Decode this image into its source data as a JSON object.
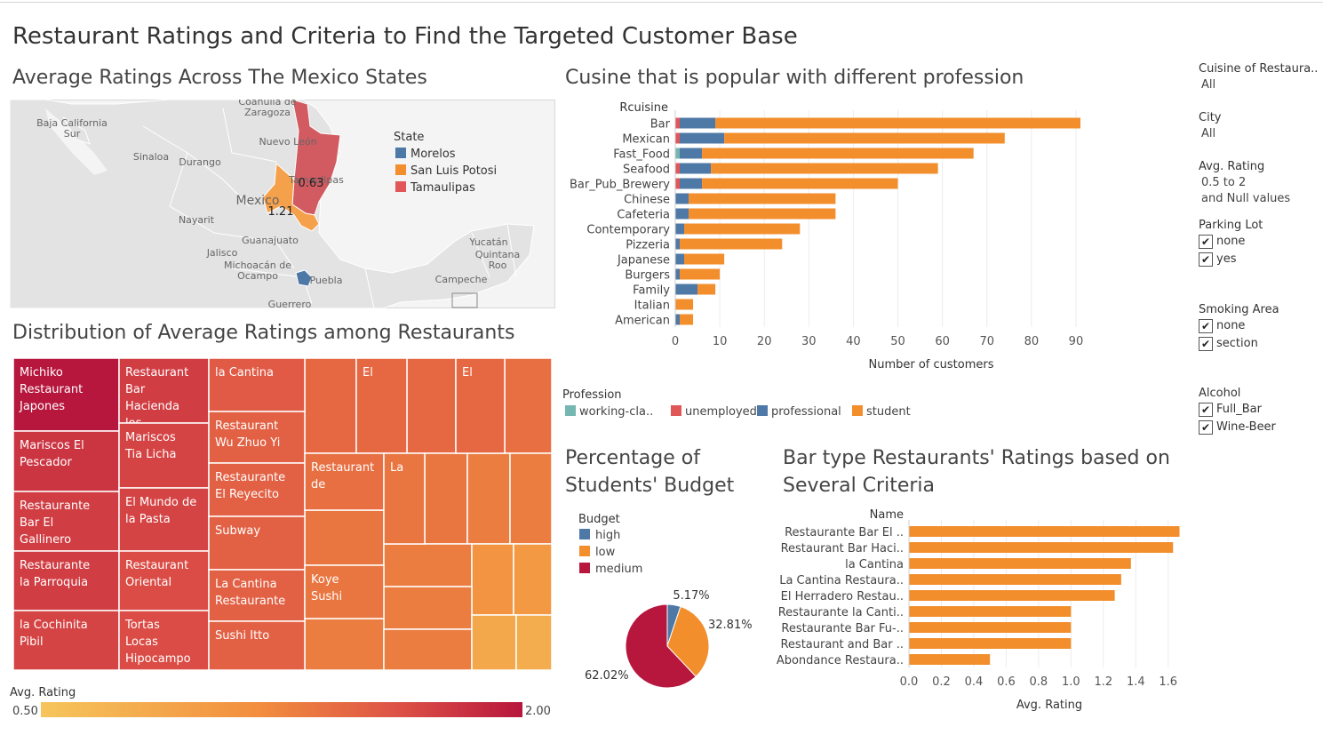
{
  "dashboard_title": "Restaurant Ratings and Criteria to Find the Targeted Customer Base",
  "colors": {
    "student": "#f28e2b",
    "professional": "#4e79a7",
    "unemployed": "#e15759",
    "working_class": "#76b7b2",
    "budget_high": "#4e79a7",
    "budget_low": "#f28e2b",
    "budget_medium": "#b7163d",
    "rating_low": "#f6c55b",
    "rating_high": "#b7163d",
    "map_land": "#e3e3e3",
    "map_water": "#f4f4f4"
  },
  "map": {
    "title": "Average Ratings Across The Mexico States",
    "legend_title": "State",
    "legend": [
      {
        "name": "Morelos",
        "color": "#4e79a7"
      },
      {
        "name": "San Luis Potosi",
        "color": "#f28e2b"
      },
      {
        "name": "Tamaulipas",
        "color": "#e15759"
      }
    ],
    "state_labels": [
      {
        "state": "Tamaulipas",
        "value": "0.63"
      },
      {
        "state": "San Luis Potosi",
        "value": "1.21"
      }
    ],
    "place_labels": [
      "Coahuila de Zaragoza",
      "Baja California Sur",
      "Nuevo León",
      "Sinaloa",
      "Durango",
      "Tamaulipas",
      "Mexico",
      "Nayarit",
      "Guanajuato",
      "Jalisco",
      "Michoacán de Ocampo",
      "Puebla",
      "Guerrero",
      "Yucatán",
      "Quintana Roo",
      "Campeche"
    ]
  },
  "chart_data": [
    {
      "type": "bar",
      "orientation": "horizontal",
      "stacked": true,
      "title": "Cusine that is popular with different profession",
      "category_header": "Rcuisine",
      "xlabel": "Number of customers",
      "xlim": [
        0,
        95
      ],
      "xticks": [
        0,
        10,
        20,
        30,
        40,
        50,
        60,
        70,
        80,
        90
      ],
      "legend_title": "Profession",
      "categories": [
        "Bar",
        "Mexican",
        "Fast_Food",
        "Seafood",
        "Bar_Pub_Brewery",
        "Chinese",
        "Cafeteria",
        "Contemporary",
        "Pizzeria",
        "Japanese",
        "Burgers",
        "Family",
        "Italian",
        "American"
      ],
      "series": [
        {
          "name": "working-cla..",
          "color": "#76b7b2",
          "values": [
            0,
            0,
            1,
            0,
            0,
            0,
            0,
            0,
            0,
            0,
            0,
            0,
            0,
            0
          ]
        },
        {
          "name": "unemployed",
          "color": "#e15759",
          "values": [
            1,
            1,
            0,
            1,
            1,
            0,
            0,
            0,
            0,
            0,
            0,
            0,
            0,
            0
          ]
        },
        {
          "name": "professional",
          "color": "#4e79a7",
          "values": [
            8,
            10,
            5,
            7,
            5,
            3,
            3,
            2,
            1,
            2,
            1,
            5,
            0,
            1
          ]
        },
        {
          "name": "student",
          "color": "#f28e2b",
          "values": [
            82,
            63,
            61,
            51,
            44,
            33,
            33,
            26,
            23,
            9,
            9,
            4,
            4,
            3
          ]
        }
      ]
    },
    {
      "type": "treemap",
      "title": "Distribution of Average Ratings among Restaurants",
      "color_legend_title": "Avg. Rating",
      "color_range": [
        0.5,
        2.0
      ],
      "color_range_labels": [
        "0.50",
        "2.00"
      ],
      "cells": [
        {
          "label": "Michiko Restaurant Japones",
          "rating": 2.0
        },
        {
          "label": "Mariscos El Pescador",
          "rating": 1.8
        },
        {
          "label": "Restaurante Bar El Gallinero",
          "rating": 1.75
        },
        {
          "label": "Restaurante la Parroquia",
          "rating": 1.75
        },
        {
          "label": "la Cochinita Pibil",
          "rating": 1.7
        },
        {
          "label": "Restaurant Bar Hacienda los Martinez",
          "rating": 1.75
        },
        {
          "label": "Mariscos Tia Licha",
          "rating": 1.7
        },
        {
          "label": "El Mundo de la Pasta",
          "rating": 1.7
        },
        {
          "label": "Restaurant Oriental",
          "rating": 1.65
        },
        {
          "label": "Tortas Locas Hipocampo",
          "rating": 1.65
        },
        {
          "label": "la Cantina",
          "rating": 1.55
        },
        {
          "label": "Restaurant Wu Zhuo Yi",
          "rating": 1.5
        },
        {
          "label": "Restaurante El Reyecito",
          "rating": 1.5
        },
        {
          "label": "Subway",
          "rating": 1.5
        },
        {
          "label": "La Cantina Restaurante",
          "rating": 1.5
        },
        {
          "label": "Sushi Itto",
          "rating": 1.5
        },
        {
          "label": "El",
          "rating": 1.45
        },
        {
          "label": "El",
          "rating": 1.45
        },
        {
          "label": "Restaurant de",
          "rating": 1.4
        },
        {
          "label": "La",
          "rating": 1.35
        },
        {
          "label": "Koye Sushi",
          "rating": 1.35
        }
      ]
    },
    {
      "type": "pie",
      "title": "Percentage of Students' Budget",
      "legend_title": "Budget",
      "slices": [
        {
          "name": "high",
          "value": 5.17,
          "label": "5.17%",
          "color": "#4e79a7"
        },
        {
          "name": "low",
          "value": 32.81,
          "label": "32.81%",
          "color": "#f28e2b"
        },
        {
          "name": "medium",
          "value": 62.02,
          "label": "62.02%",
          "color": "#b7163d"
        }
      ]
    },
    {
      "type": "bar",
      "orientation": "horizontal",
      "title": "Bar type Restaurants' Ratings based on Several Criteria",
      "category_header": "Name",
      "xlabel": "Avg. Rating",
      "xlim": [
        0,
        1.7
      ],
      "xticks": [
        "0.0",
        "0.2",
        "0.4",
        "0.6",
        "0.8",
        "1.0",
        "1.2",
        "1.4",
        "1.6"
      ],
      "categories": [
        "Restaurante Bar El ..",
        "Restaurant Bar Haci..",
        "la Cantina",
        "La Cantina Restaura..",
        "El Herradero Restau..",
        "Restaurante la Canti..",
        "Restaurante Bar Fu-..",
        "Restaurant and Bar ..",
        "Abondance Restaura.."
      ],
      "values": [
        1.67,
        1.63,
        1.37,
        1.31,
        1.27,
        1.0,
        1.0,
        1.0,
        0.5
      ],
      "color": "#f28e2b"
    }
  ],
  "filters": {
    "cuisine": {
      "label": "Cuisine of Restaura..",
      "value": "All"
    },
    "city": {
      "label": "City",
      "value": "All"
    },
    "rating": {
      "label": "Avg. Rating",
      "value": "0.5 to 2",
      "value2": "and Null values"
    },
    "parking": {
      "label": "Parking Lot",
      "options": [
        "none",
        "yes"
      ]
    },
    "smoking": {
      "label": "Smoking Area",
      "options": [
        "none",
        "section"
      ]
    },
    "alcohol": {
      "label": "Alcohol",
      "options": [
        "Full_Bar",
        "Wine-Beer"
      ]
    },
    "check_mark": "✔"
  }
}
